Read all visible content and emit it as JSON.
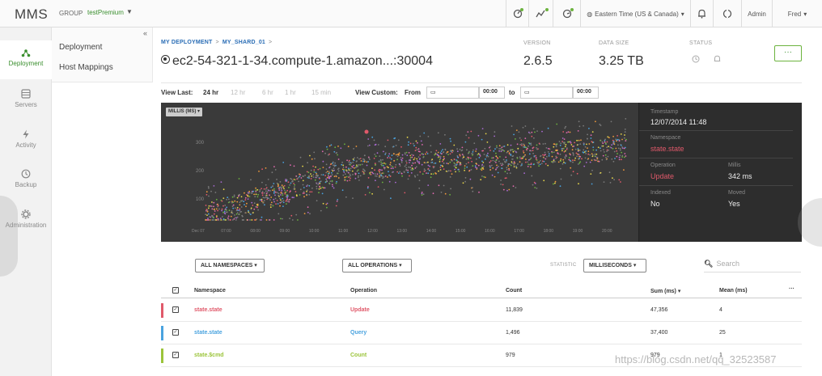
{
  "app": {
    "brand": "MMS",
    "group_label": "GROUP",
    "group_name": "testPremium"
  },
  "topbar": {
    "timezone": "Eastern Time (US & Canada)",
    "admin": "Admin",
    "user": "Fred"
  },
  "sidebar": {
    "items": [
      {
        "label": "Deployment",
        "icon": "deployment-icon"
      },
      {
        "label": "Servers",
        "icon": "servers-icon"
      },
      {
        "label": "Activity",
        "icon": "activity-icon"
      },
      {
        "label": "Backup",
        "icon": "backup-icon"
      },
      {
        "label": "Administration",
        "icon": "gear-icon"
      }
    ],
    "subnav": [
      "Deployment",
      "Host Mappings"
    ]
  },
  "header": {
    "breadcrumb": [
      "MY DEPLOYMENT",
      "MY_SHARD_01"
    ],
    "host": "ec2-54-321-1-34.compute-1.amazon...:30004",
    "version_label": "VERSION",
    "version": "2.6.5",
    "size_label": "DATA SIZE",
    "size": "3.25 TB",
    "status_label": "STATUS",
    "more": "···"
  },
  "timerange": {
    "view_last": "View Last:",
    "options": [
      "24 hr",
      "12 hr",
      "6 hr",
      "1 hr",
      "15 min"
    ],
    "selected": "24 hr",
    "view_custom": "View Custom:",
    "from": "From",
    "to": "to",
    "from_time": "00:00",
    "to_time": "00:00"
  },
  "chart_data": {
    "type": "scatter",
    "metric_selector": "MILLIS (MS)",
    "ylabel": "",
    "y_ticks": [
      "300",
      "200",
      "100"
    ],
    "x_ticks": [
      "Dec 07",
      "07:00",
      "08:00",
      "09:00",
      "10:00",
      "11:00",
      "12:00",
      "13:00",
      "14:00",
      "15:00",
      "16:00",
      "17:00",
      "18:00",
      "19:00",
      "20:00"
    ],
    "colors": [
      "#e0596a",
      "#f29a3b",
      "#e8d74a",
      "#6cb33e",
      "#4aa3df",
      "#a96ad1",
      "#e06ab0",
      "#8a8a8a"
    ]
  },
  "details": {
    "timestamp_label": "Timestamp",
    "timestamp": "12/07/2014 11:48",
    "namespace_label": "Namespace",
    "namespace": "state.state",
    "operation_label": "Operation",
    "operation": "Update",
    "millis_label": "Millis",
    "millis": "342 ms",
    "indexed_label": "Indexed",
    "indexed": "No",
    "moved_label": "Moved",
    "moved": "Yes"
  },
  "filters": {
    "namespaces": "ALL NAMESPACES",
    "operations": "ALL OPERATIONS",
    "statistic_label": "STATISTIC",
    "statistic": "MILLISECONDS",
    "search_placeholder": "Search"
  },
  "table": {
    "headers": {
      "namespace": "Namespace",
      "operation": "Operation",
      "count": "Count",
      "sum": "Sum (ms)",
      "mean": "Mean (ms)",
      "more": "···"
    },
    "rows": [
      {
        "namespace": "state.state",
        "operation": "Update",
        "count": "11,839",
        "sum": "47,356",
        "mean": "4",
        "color": "#e0596a"
      },
      {
        "namespace": "state.state",
        "operation": "Query",
        "count": "1,496",
        "sum": "37,400",
        "mean": "25",
        "color": "#4aa3df"
      },
      {
        "namespace": "state.$cmd",
        "operation": "Count",
        "count": "979",
        "sum": "979",
        "mean": "1",
        "color": "#9bc43a"
      }
    ]
  },
  "watermark": "https://blog.csdn.net/qq_32523587"
}
